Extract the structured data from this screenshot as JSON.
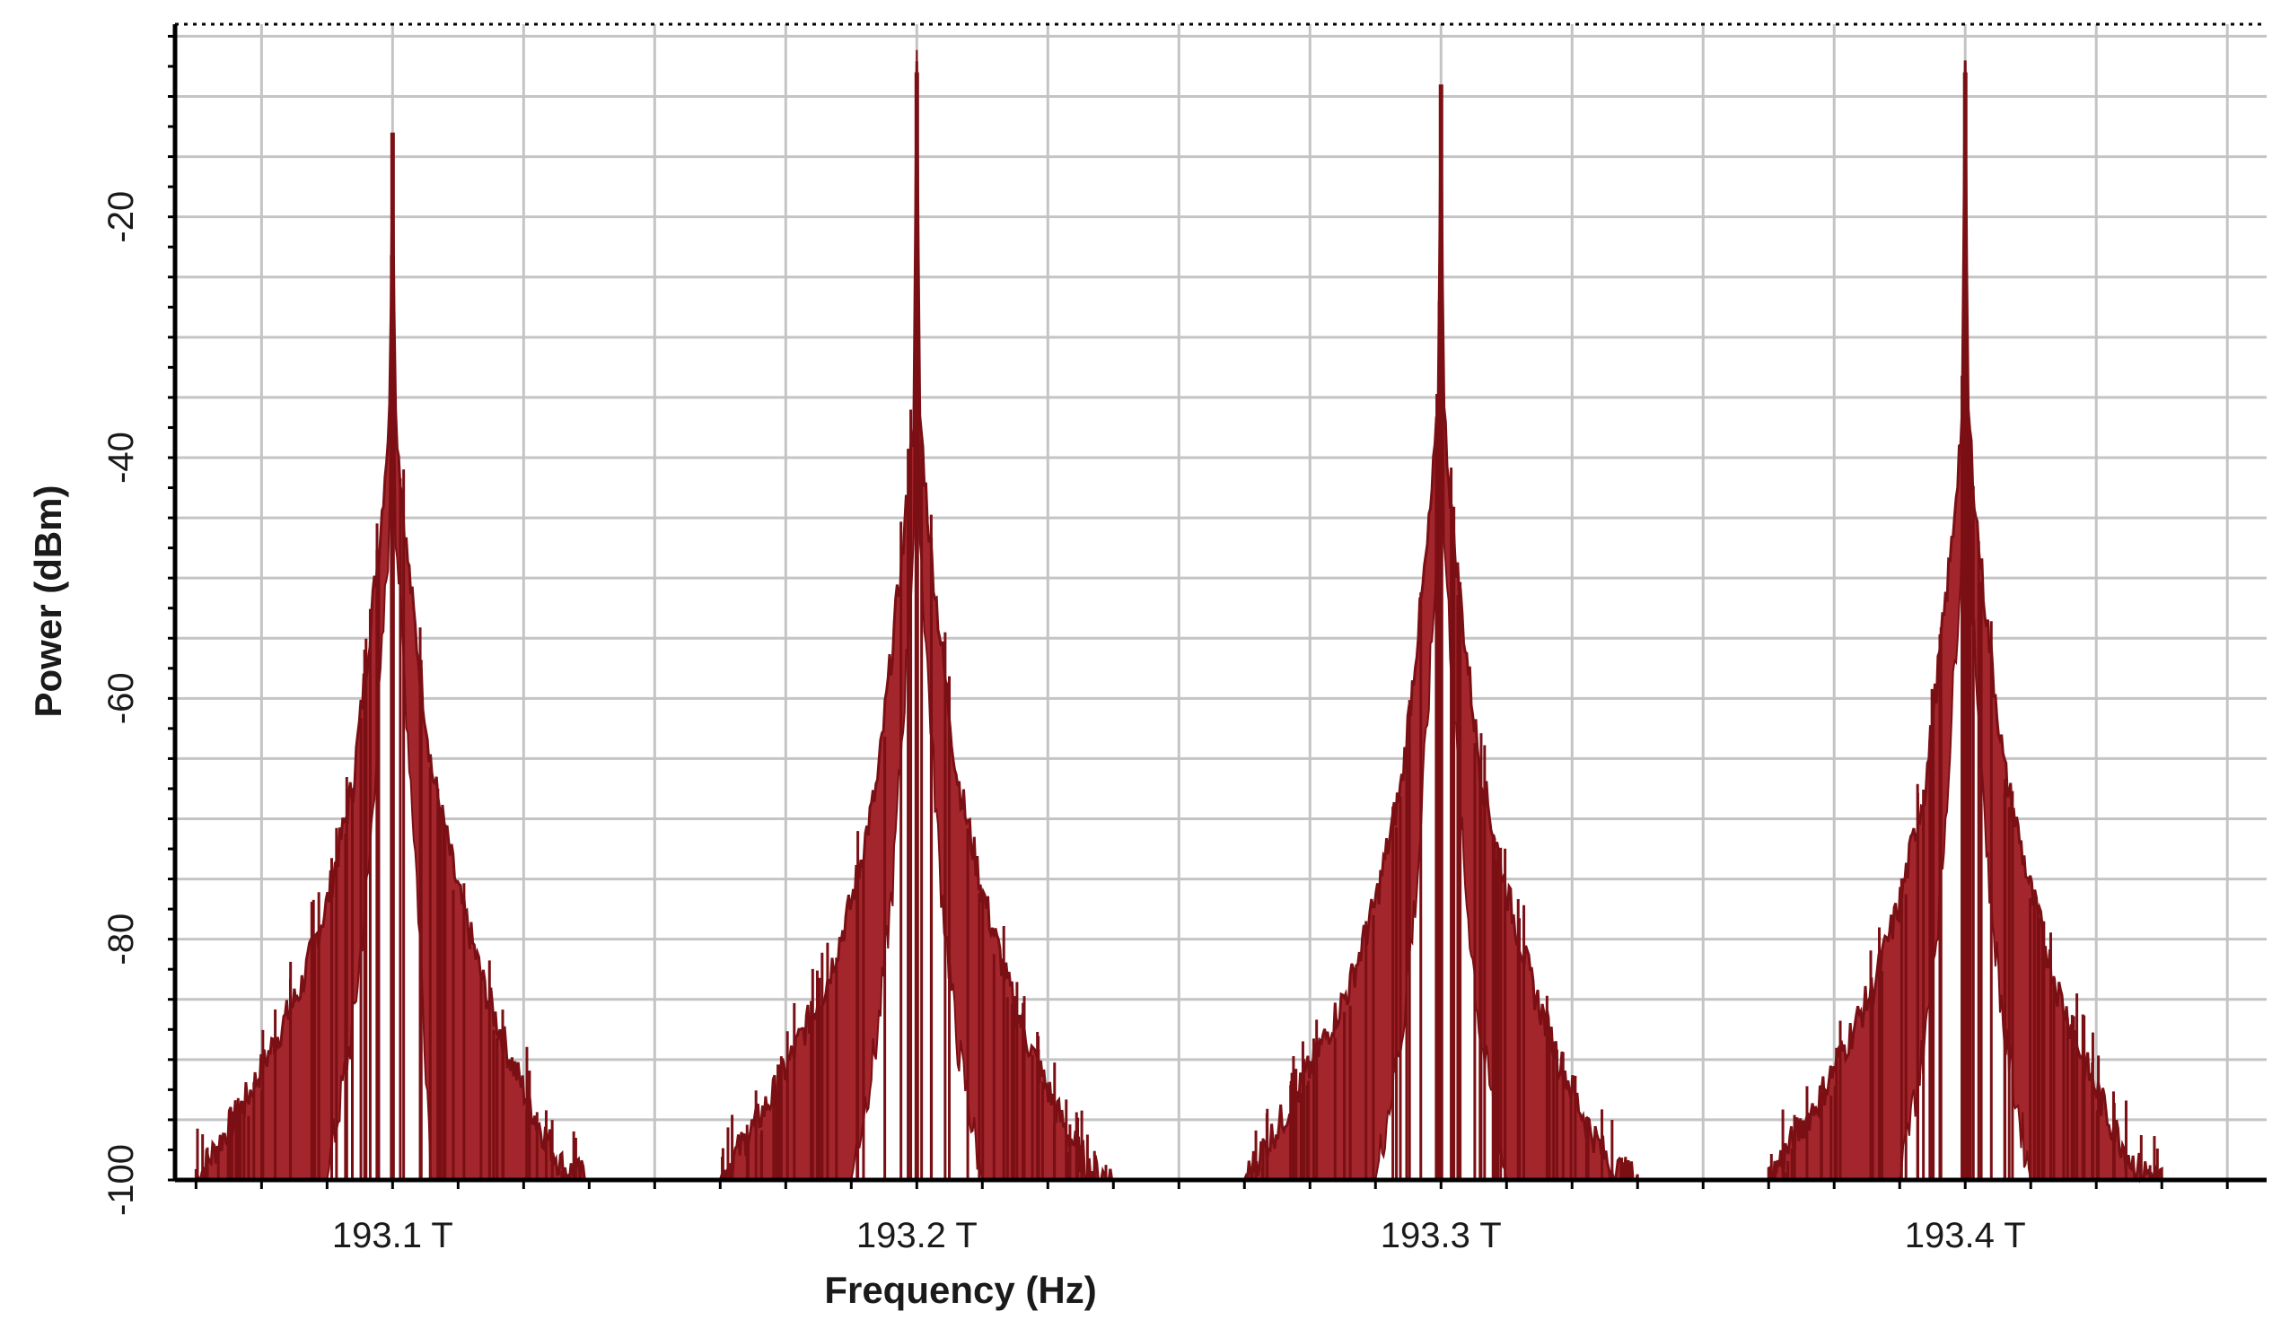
{
  "chart_data": {
    "type": "area",
    "title": "",
    "xlabel": "Frequency (Hz)",
    "ylabel": "Power (dBm)",
    "x_unit": "THz",
    "xlim": [
      193.0585,
      193.4575
    ],
    "ylim": [
      -100,
      -4
    ],
    "x_ticks": [
      {
        "value": 193.1,
        "label": "193.1 T"
      },
      {
        "value": 193.2,
        "label": "193.2 T"
      },
      {
        "value": 193.3,
        "label": "193.3 T"
      },
      {
        "value": 193.4,
        "label": "193.4 T"
      }
    ],
    "y_ticks": [
      {
        "value": -20,
        "label": "-20"
      },
      {
        "value": -40,
        "label": "-40"
      },
      {
        "value": -60,
        "label": "-60"
      },
      {
        "value": -80,
        "label": "-80"
      },
      {
        "value": -100,
        "label": "-100"
      }
    ],
    "grid": true,
    "fill_color": "#a3262d",
    "line_color": "#7a0f14",
    "series": [
      {
        "x": [
          193.0625,
          193.0725,
          193.0825,
          193.0875,
          193.0925,
          193.0955,
          193.0975,
          193.0995,
          193.1,
          193.1005,
          193.1025,
          193.1045,
          193.1075,
          193.1125,
          193.1175,
          193.1225,
          193.1275,
          193.1325,
          193.1375
        ],
        "envelope": [
          -100,
          -93,
          -84,
          -77,
          -67,
          -55,
          -47,
          -36,
          -13,
          -36,
          -47,
          -55,
          -66,
          -76,
          -84,
          -90,
          -95,
          -99,
          -100
        ],
        "inner_floor": [
          -100,
          -100,
          -100,
          -100,
          -87,
          -74,
          -60,
          -45,
          -13,
          -45,
          -60,
          -74,
          -100,
          -100,
          -100,
          -100,
          -100,
          -100,
          -100
        ],
        "peak": -13
      },
      {
        "x": [
          193.1625,
          193.1725,
          193.1825,
          193.1875,
          193.1925,
          193.1955,
          193.1975,
          193.1995,
          193.2,
          193.2005,
          193.2025,
          193.2045,
          193.2075,
          193.2125,
          193.2175,
          193.2225,
          193.2275,
          193.2325,
          193.2375
        ],
        "envelope": [
          -100,
          -93,
          -84,
          -77,
          -67,
          -55,
          -47,
          -36,
          -8,
          -36,
          -47,
          -55,
          -66,
          -76,
          -84,
          -90,
          -95,
          -99,
          -100
        ],
        "inner_floor": [
          -100,
          -100,
          -100,
          -100,
          -88,
          -75,
          -61,
          -46,
          -8,
          -46,
          -61,
          -75,
          -88,
          -100,
          -100,
          -100,
          -100,
          -100,
          -100
        ],
        "peak": -8
      },
      {
        "x": [
          193.2625,
          193.2725,
          193.2825,
          193.2875,
          193.2925,
          193.2955,
          193.2975,
          193.2995,
          193.3,
          193.3005,
          193.3025,
          193.3045,
          193.3075,
          193.3125,
          193.3175,
          193.3225,
          193.3275,
          193.3325,
          193.3375
        ],
        "envelope": [
          -100,
          -93,
          -84,
          -77,
          -67,
          -55,
          -47,
          -36,
          -9,
          -36,
          -47,
          -55,
          -66,
          -76,
          -84,
          -90,
          -95,
          -99,
          -100
        ],
        "inner_floor": [
          -100,
          -100,
          -100,
          -100,
          -88,
          -75,
          -61,
          -46,
          -9,
          -46,
          -61,
          -75,
          -88,
          -100,
          -100,
          -100,
          -100,
          -100,
          -100
        ],
        "peak": -9
      },
      {
        "x": [
          193.3625,
          193.3725,
          193.3825,
          193.3875,
          193.3925,
          193.3955,
          193.3975,
          193.3995,
          193.4,
          193.4005,
          193.4025,
          193.4045,
          193.4075,
          193.4125,
          193.4175,
          193.4225,
          193.4275,
          193.4325,
          193.4375
        ],
        "envelope": [
          -100,
          -93,
          -84,
          -77,
          -67,
          -55,
          -47,
          -36,
          -8,
          -36,
          -47,
          -55,
          -66,
          -76,
          -84,
          -90,
          -95,
          -99,
          -100
        ],
        "inner_floor": [
          -100,
          -100,
          -100,
          -100,
          -88,
          -75,
          -61,
          -46,
          -8,
          -46,
          -61,
          -75,
          -88,
          -100,
          -100,
          -100,
          -100,
          -100,
          -100
        ],
        "peak": -8
      }
    ]
  }
}
